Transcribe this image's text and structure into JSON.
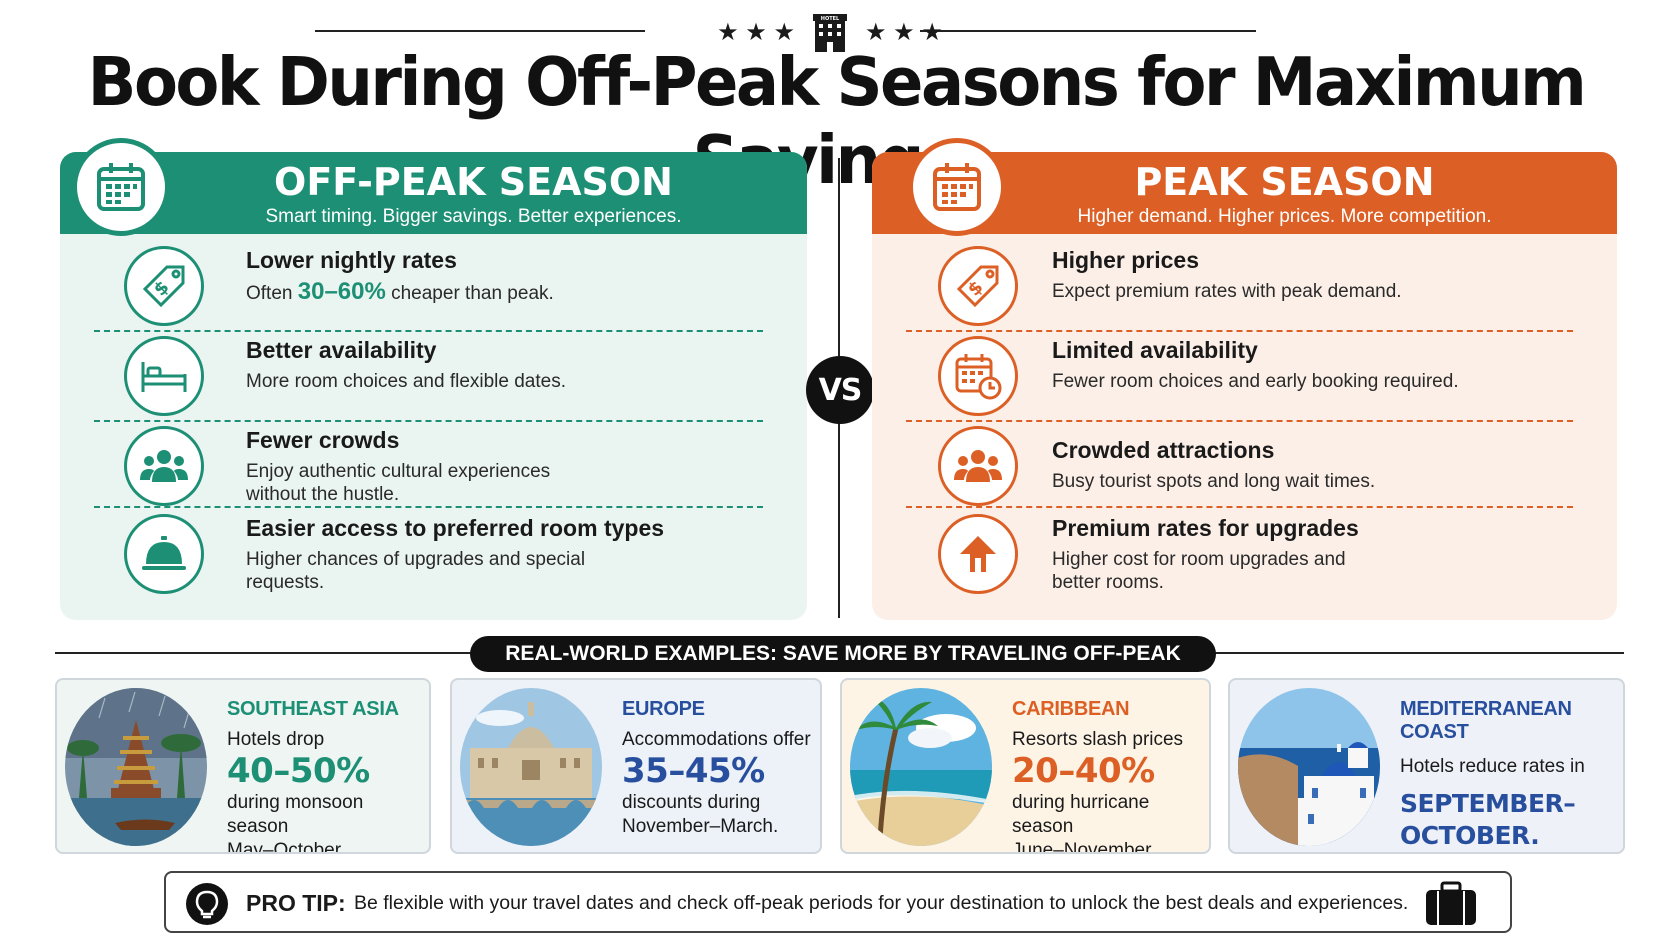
{
  "header": {
    "title": "Book During Off-Peak Seasons for Maximum Savings.",
    "stars_left": "★ ★ ★",
    "stars_right": "★ ★ ★",
    "hotel_sign": "HOTEL"
  },
  "off_peak": {
    "title": "OFF-PEAK SEASON",
    "subtitle": "Smart timing. Bigger savings. Better experiences.",
    "accent_color": "#1c8f74",
    "items": [
      {
        "icon": "price-tag-icon",
        "title": "Lower nightly rates",
        "desc_prefix": "Often ",
        "desc_highlight": "30–60%",
        "desc_suffix": " cheaper than peak."
      },
      {
        "icon": "bed-icon",
        "title": "Better availability",
        "desc": "More room choices and flexible dates."
      },
      {
        "icon": "crowd-icon",
        "title": "Fewer crowds",
        "desc": "Enjoy authentic cultural experiences without the hustle."
      },
      {
        "icon": "service-bell-icon",
        "title": "Easier access to preferred room types",
        "desc": "Higher chances of upgrades and special requests."
      }
    ]
  },
  "vs_label": "VS",
  "peak": {
    "title": "PEAK SEASON",
    "subtitle": "Higher demand. Higher prices. More competition.",
    "accent_color": "#dc6025",
    "items": [
      {
        "icon": "price-tag-icon",
        "title": "Higher prices",
        "desc": "Expect premium rates with peak demand."
      },
      {
        "icon": "calendar-clock-icon",
        "title": "Limited availability",
        "desc": "Fewer room choices and early booking required."
      },
      {
        "icon": "crowd-icon",
        "title": "Crowded attractions",
        "desc": "Busy tourist spots and long wait times."
      },
      {
        "icon": "up-arrow-icon",
        "title": "Premium rates for upgrades",
        "desc": "Higher cost for room upgrades and better rooms."
      }
    ]
  },
  "examples": {
    "banner": "REAL-WORLD EXAMPLES: SAVE MORE BY TRAVELING OFF-PEAK",
    "cards": [
      {
        "region": "SOUTHEAST ASIA",
        "line1": "Hotels drop",
        "pct": "40–50%",
        "line2": "during monsoon season",
        "line3": "May–October."
      },
      {
        "region": "EUROPE",
        "line1": "Accommodations offer",
        "pct": "35–45%",
        "line2": "discounts during",
        "line3": "November–March."
      },
      {
        "region": "CARIBBEAN",
        "line1": "Resorts slash prices",
        "pct": "20–40%",
        "line2": "during hurricane season",
        "line3": "June–November."
      },
      {
        "region": "MEDITERRANEAN COAST",
        "line1": "Hotels reduce rates in",
        "big1": "SEPTEMBER–",
        "big2": "OCTOBER."
      }
    ]
  },
  "pro_tip": {
    "label": "PRO TIP:",
    "text": "Be flexible with your travel dates and check off-peak periods for your destination to unlock the best deals and experiences."
  }
}
